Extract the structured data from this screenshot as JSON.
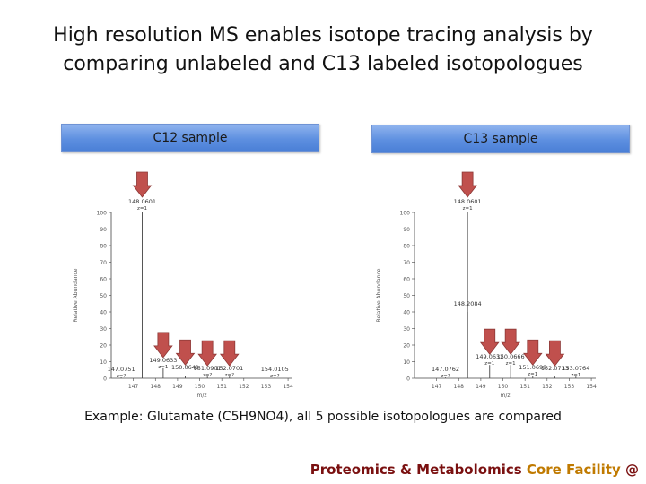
{
  "slide": {
    "title_line1": "High resolution MS enables isotope tracing analysis by",
    "title_line2": "comparing unlabeled and C13 labeled isotopologues",
    "caption": "Example: Glutamate (C5H9NO4), all 5 possible isotopologues are compared",
    "footer_part1": "Proteomics & Metabolomics ",
    "footer_part2": "Core Facility",
    "footer_part3": " @"
  },
  "colors": {
    "arrow_fill": "#c0504d",
    "arrow_stroke": "#8c3836",
    "footer_main": "#7a1010",
    "footer_accent": "#c07a00",
    "spectrum_line": "#444444"
  },
  "spectra": [
    {
      "label": "C12 sample",
      "y_axis_label": "Relative Abundance",
      "x_axis_label": "m/z",
      "y_ticks": [
        "100",
        "90",
        "80",
        "70",
        "60",
        "50",
        "40",
        "30",
        "20",
        "10",
        "0"
      ],
      "x_ticks": [
        "147",
        "148",
        "149",
        "150",
        "151",
        "152",
        "153",
        "154"
      ],
      "peaks": [
        {
          "mz": 147.4,
          "intensity": 100,
          "label": "148.0601",
          "sublabel": "z=1",
          "arrow": true
        },
        {
          "mz": 148.35,
          "intensity": 6,
          "label": "149.0633",
          "sublabel": "z=1",
          "arrow": true
        },
        {
          "mz": 149.35,
          "intensity": 1.5,
          "label": "150.0641",
          "sublabel": "",
          "arrow": true
        },
        {
          "mz": 150.35,
          "intensity": 1,
          "label": "151.0901",
          "sublabel": "z=?",
          "arrow": true
        },
        {
          "mz": 151.35,
          "intensity": 1,
          "label": "152.0701",
          "sublabel": "z=?",
          "arrow": true
        },
        {
          "mz": 146.45,
          "intensity": 0.5,
          "label": "147.0751",
          "sublabel": "z=?",
          "arrow": false
        },
        {
          "mz": 153.4,
          "intensity": 0.5,
          "label": "154.0105",
          "sublabel": "z=?",
          "arrow": false
        }
      ]
    },
    {
      "label": "C13 sample",
      "y_axis_label": "Relative Abundance",
      "x_axis_label": "m/z",
      "y_ticks": [
        "100",
        "90",
        "80",
        "70",
        "60",
        "50",
        "40",
        "30",
        "20",
        "10",
        "0"
      ],
      "x_ticks": [
        "147",
        "148",
        "149",
        "150",
        "151",
        "152",
        "153",
        "154"
      ],
      "peaks": [
        {
          "mz": 148.4,
          "intensity": 100,
          "label": "148.0601",
          "sublabel": "z=1",
          "arrow": true
        },
        {
          "mz": 148.4,
          "intensity": 40,
          "label": "148.2084",
          "sublabel": "",
          "arrow": false
        },
        {
          "mz": 149.4,
          "intensity": 8,
          "label": "149.0632",
          "sublabel": "z=1",
          "arrow": true
        },
        {
          "mz": 150.35,
          "intensity": 8,
          "label": "150.0666",
          "sublabel": "z=1",
          "arrow": true
        },
        {
          "mz": 151.35,
          "intensity": 1.5,
          "label": "151.0699",
          "sublabel": "z=1",
          "arrow": true
        },
        {
          "mz": 152.35,
          "intensity": 1,
          "label": "152.0733",
          "sublabel": "",
          "arrow": true
        },
        {
          "mz": 147.4,
          "intensity": 0.5,
          "label": "147.0762",
          "sublabel": "z=?",
          "arrow": false
        },
        {
          "mz": 153.3,
          "intensity": 1,
          "label": "153.0764",
          "sublabel": "z=1",
          "arrow": false
        }
      ]
    }
  ]
}
